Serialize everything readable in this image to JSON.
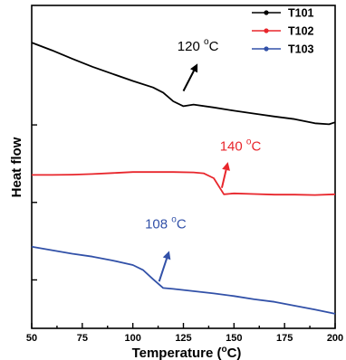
{
  "chart_data": {
    "type": "line",
    "title": "",
    "xlabel": "Temperature (°C)",
    "xlabel_parts": {
      "pre": "Temperature (",
      "sup": "o",
      "post": "C)"
    },
    "ylabel": "Heat flow",
    "xlim": [
      50,
      200
    ],
    "ylim": [
      0,
      100
    ],
    "x_ticks": [
      50,
      75,
      100,
      125,
      150,
      175,
      200
    ],
    "x_tick_labels": [
      "50",
      "75",
      "100",
      "125",
      "150",
      "175",
      "200"
    ],
    "y_ticks_unlabeled": [
      15,
      39,
      63
    ],
    "grid": false,
    "legend": {
      "position": "top-right"
    },
    "series": [
      {
        "name": "T101",
        "color": "#000000",
        "x": [
          50,
          60,
          70,
          80,
          90,
          100,
          110,
          115,
          120,
          125,
          130,
          140,
          150,
          160,
          170,
          180,
          190,
          197,
          200
        ],
        "y": [
          88.5,
          86.1,
          83.5,
          81.0,
          78.8,
          76.6,
          74.6,
          73.0,
          70.3,
          68.8,
          69.3,
          68.4,
          67.4,
          66.5,
          65.6,
          64.8,
          63.5,
          63.2,
          63.8
        ]
      },
      {
        "name": "T102",
        "color": "#e8262c",
        "x": [
          50,
          60,
          70,
          80,
          90,
          100,
          110,
          120,
          130,
          135,
          140,
          145,
          150,
          160,
          170,
          180,
          190,
          200
        ],
        "y": [
          47.5,
          47.5,
          47.6,
          47.8,
          48.1,
          48.4,
          48.4,
          48.4,
          48.3,
          48.0,
          46.5,
          41.5,
          41.8,
          41.6,
          41.4,
          41.4,
          41.3,
          41.5
        ]
      },
      {
        "name": "T103",
        "color": "#3251a8",
        "x": [
          50,
          60,
          70,
          80,
          90,
          100,
          105,
          110,
          115,
          120,
          130,
          140,
          150,
          160,
          170,
          180,
          190,
          200
        ],
        "y": [
          25.3,
          24.2,
          23.1,
          22.2,
          21.0,
          19.6,
          18.1,
          15.2,
          12.5,
          12.2,
          11.5,
          10.8,
          10.0,
          9.0,
          8.2,
          7.0,
          5.8,
          4.5
        ]
      }
    ],
    "annotations": [
      {
        "label": "120 °C",
        "num": "120 ",
        "sup": "o",
        "unit": "C",
        "series": "T101",
        "color": "#000000",
        "arrow_from": [
          125,
          73.5
        ],
        "arrow_to": [
          132,
          82
        ],
        "text_at": [
          122,
          86
        ]
      },
      {
        "label": "140 °C",
        "num": "140 ",
        "sup": "o",
        "unit": "C",
        "series": "T102",
        "color": "#e8262c",
        "arrow_from": [
          144,
          43.5
        ],
        "arrow_to": [
          147,
          51.5
        ],
        "text_at": [
          143,
          55
        ]
      },
      {
        "label": "108 °C",
        "num": "108 ",
        "sup": "o",
        "unit": "C",
        "series": "T103",
        "color": "#3251a8",
        "arrow_from": [
          113,
          14.5
        ],
        "arrow_to": [
          118,
          24
        ],
        "text_at": [
          106,
          31
        ]
      }
    ]
  }
}
